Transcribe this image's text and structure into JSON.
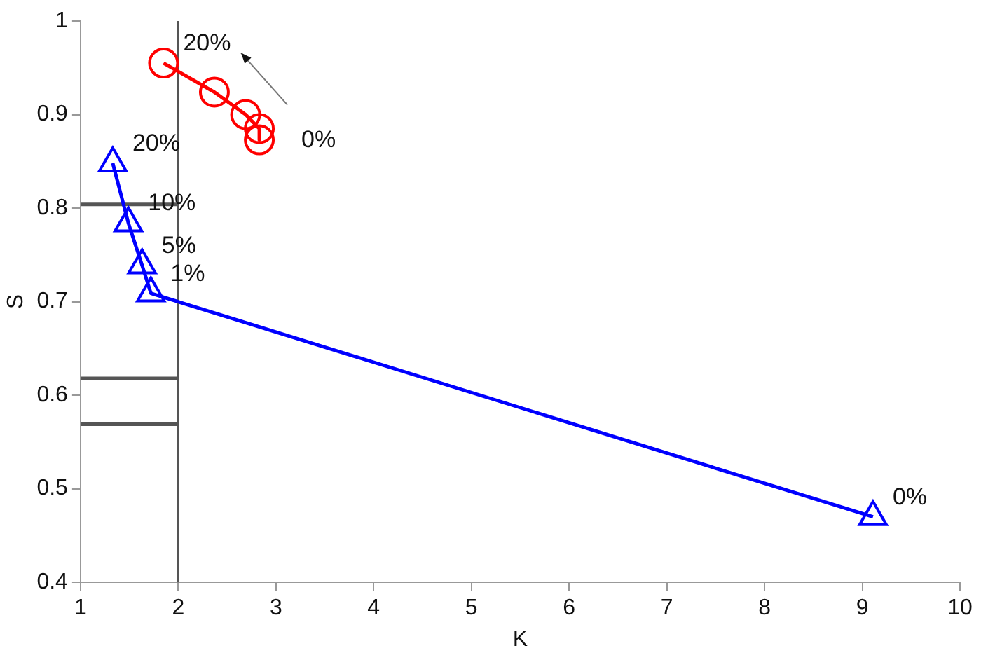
{
  "chart_data": {
    "type": "line",
    "xlabel": "K",
    "ylabel": "S",
    "xlim": [
      1,
      10
    ],
    "xticks": [
      1,
      2,
      3,
      4,
      5,
      6,
      7,
      8,
      9,
      10
    ],
    "ylim": [
      0.4,
      1
    ],
    "yticks": [
      0.4,
      0.5,
      0.6,
      0.7,
      0.8,
      0.9,
      1
    ],
    "grid": false,
    "legend": false,
    "series": [
      {
        "color": "#ff0000",
        "marker": "circle",
        "x": [
          1.85,
          2.37,
          2.69,
          2.83,
          2.83
        ],
        "values": [
          0.955,
          0.924,
          0.9,
          0.885,
          0.873
        ]
      },
      {
        "color": "#0000ff",
        "marker": "triangle",
        "x": [
          1.33,
          1.49,
          1.63,
          1.72,
          9.11
        ],
        "values": [
          0.848,
          0.784,
          0.739,
          0.709,
          0.47
        ]
      },
      {
        "color": "#555555",
        "marker": "none",
        "x": [
          1,
          2
        ],
        "values": [
          0.804,
          0.804
        ]
      },
      {
        "color": "#555555",
        "marker": "none",
        "x": [
          1,
          2
        ],
        "values": [
          0.618,
          0.618
        ]
      },
      {
        "color": "#555555",
        "marker": "none",
        "x": [
          1,
          2
        ],
        "values": [
          0.569,
          0.569
        ]
      }
    ],
    "ref_lines": [
      {
        "axis": "x",
        "value": 2,
        "color": "#555555"
      }
    ],
    "annotations": [
      {
        "text": "20%",
        "x": 1.85,
        "y": 0.955
      },
      {
        "text": "0%",
        "x": 2.83,
        "y": 0.873
      },
      {
        "text": "20%",
        "x": 1.33,
        "y": 0.848
      },
      {
        "text": "10%",
        "x": 1.49,
        "y": 0.784
      },
      {
        "text": "5%",
        "x": 1.63,
        "y": 0.739
      },
      {
        "text": "1%",
        "x": 1.72,
        "y": 0.709
      },
      {
        "text": "0%",
        "x": 9.11,
        "y": 0.47
      }
    ]
  }
}
